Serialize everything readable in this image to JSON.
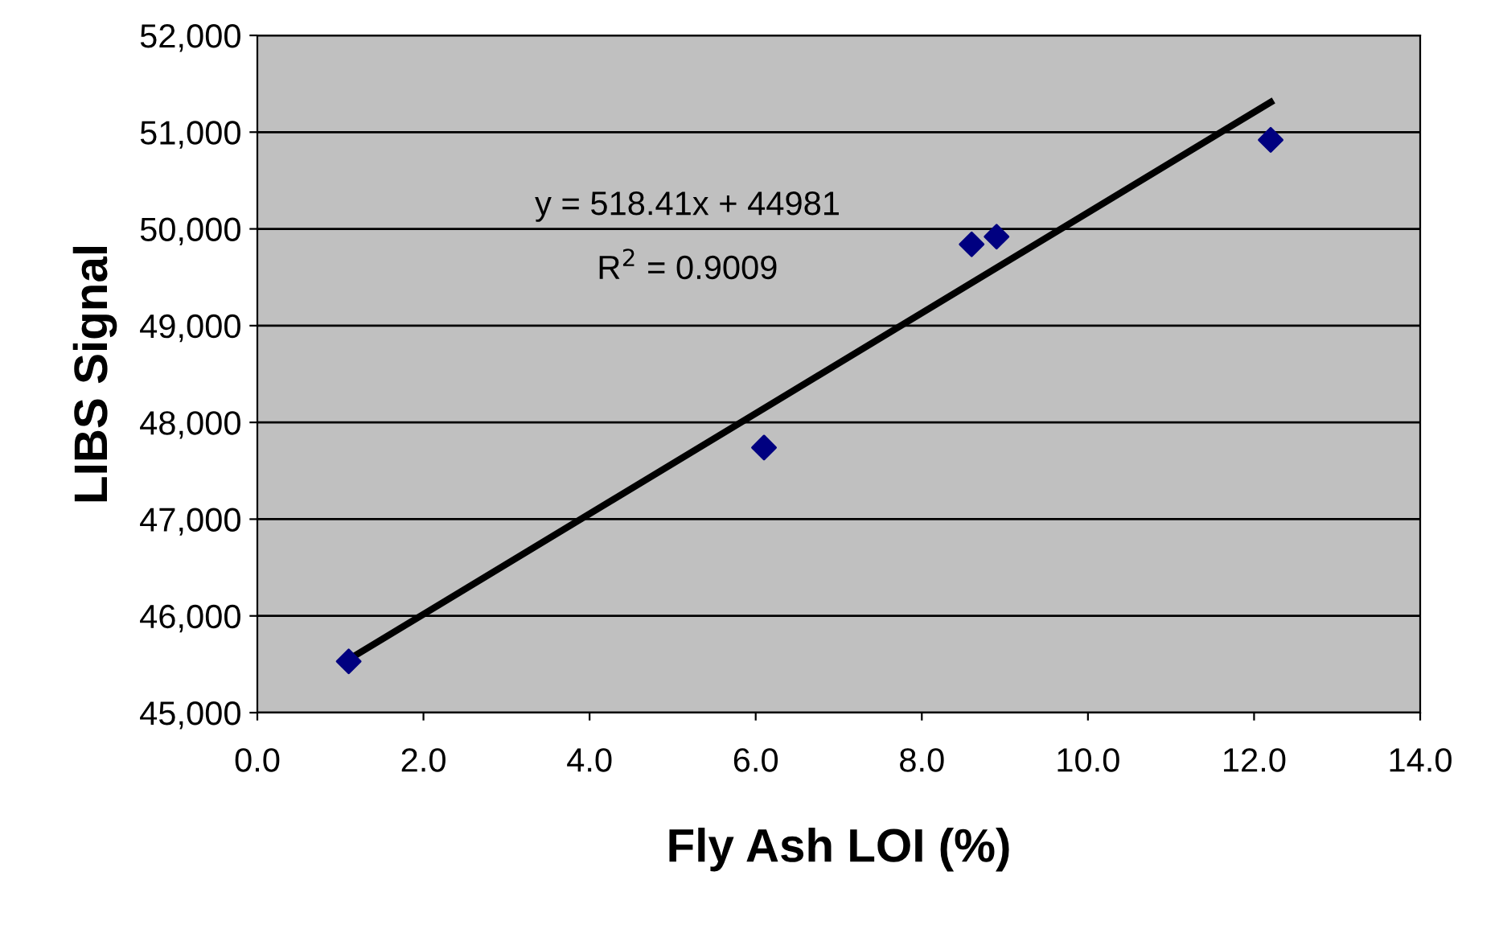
{
  "chart_data": {
    "type": "scatter",
    "xlabel": "Fly Ash LOI (%)",
    "ylabel": "LIBS Signal",
    "series": [
      {
        "color": "#000080",
        "marker": "diamond",
        "x": [
          1.1,
          6.1,
          8.6,
          8.9,
          12.2
        ],
        "values": [
          45530,
          47740,
          49840,
          49920,
          50920
        ]
      },
      {
        "type": "line",
        "color": "#000000",
        "marker": "none",
        "line_style": "solid",
        "x": [
          1.1,
          12.2
        ],
        "values": [
          45550,
          51310
        ]
      }
    ],
    "xlim": [
      0,
      14
    ],
    "ylim": [
      45000,
      52000
    ],
    "xticks": [
      {
        "value": 0,
        "label": "0.0"
      },
      {
        "value": 2,
        "label": "2.0"
      },
      {
        "value": 4,
        "label": "4.0"
      },
      {
        "value": 6,
        "label": "6.0"
      },
      {
        "value": 8,
        "label": "8.0"
      },
      {
        "value": 10,
        "label": "10.0"
      },
      {
        "value": 12,
        "label": "12.0"
      },
      {
        "value": 14,
        "label": "14.0"
      }
    ],
    "yticks": [
      {
        "value": 45000,
        "label": "45,000"
      },
      {
        "value": 46000,
        "label": "46,000"
      },
      {
        "value": 47000,
        "label": "47,000"
      },
      {
        "value": 48000,
        "label": "48,000"
      },
      {
        "value": 49000,
        "label": "49,000"
      },
      {
        "value": 50000,
        "label": "50,000"
      },
      {
        "value": 51000,
        "label": "51,000"
      },
      {
        "value": 52000,
        "label": "52,000"
      }
    ],
    "grid": "y",
    "legend": false,
    "annotations": [
      "y = 518.41x + 44981",
      "R$^{2}$ = 0.9009"
    ]
  }
}
